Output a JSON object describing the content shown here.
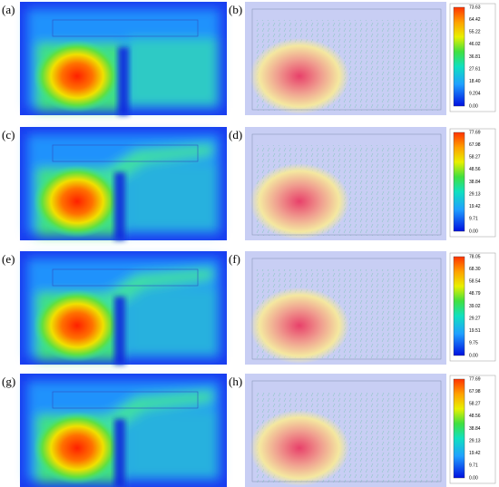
{
  "panels": [
    {
      "left_label": "(a)",
      "right_label": "(b)",
      "colorbar": [
        "73.63",
        "64.42",
        "55.22",
        "46.02",
        "36.81",
        "27.61",
        "18.40",
        "9.204",
        "0.00"
      ]
    },
    {
      "left_label": "(c)",
      "right_label": "(d)",
      "colorbar": [
        "77.69",
        "67.98",
        "58.27",
        "48.56",
        "38.84",
        "29.13",
        "19.42",
        "9.71",
        "0.00"
      ]
    },
    {
      "left_label": "(e)",
      "right_label": "(f)",
      "colorbar": [
        "78.05",
        "68.30",
        "58.54",
        "48.79",
        "39.02",
        "29.27",
        "19.51",
        "9.75",
        "0.00"
      ]
    },
    {
      "left_label": "(g)",
      "right_label": "(h)",
      "colorbar": [
        "77.69",
        "67.98",
        "58.27",
        "48.56",
        "38.84",
        "29.13",
        "19.42",
        "9.71",
        "0.00"
      ]
    }
  ]
}
